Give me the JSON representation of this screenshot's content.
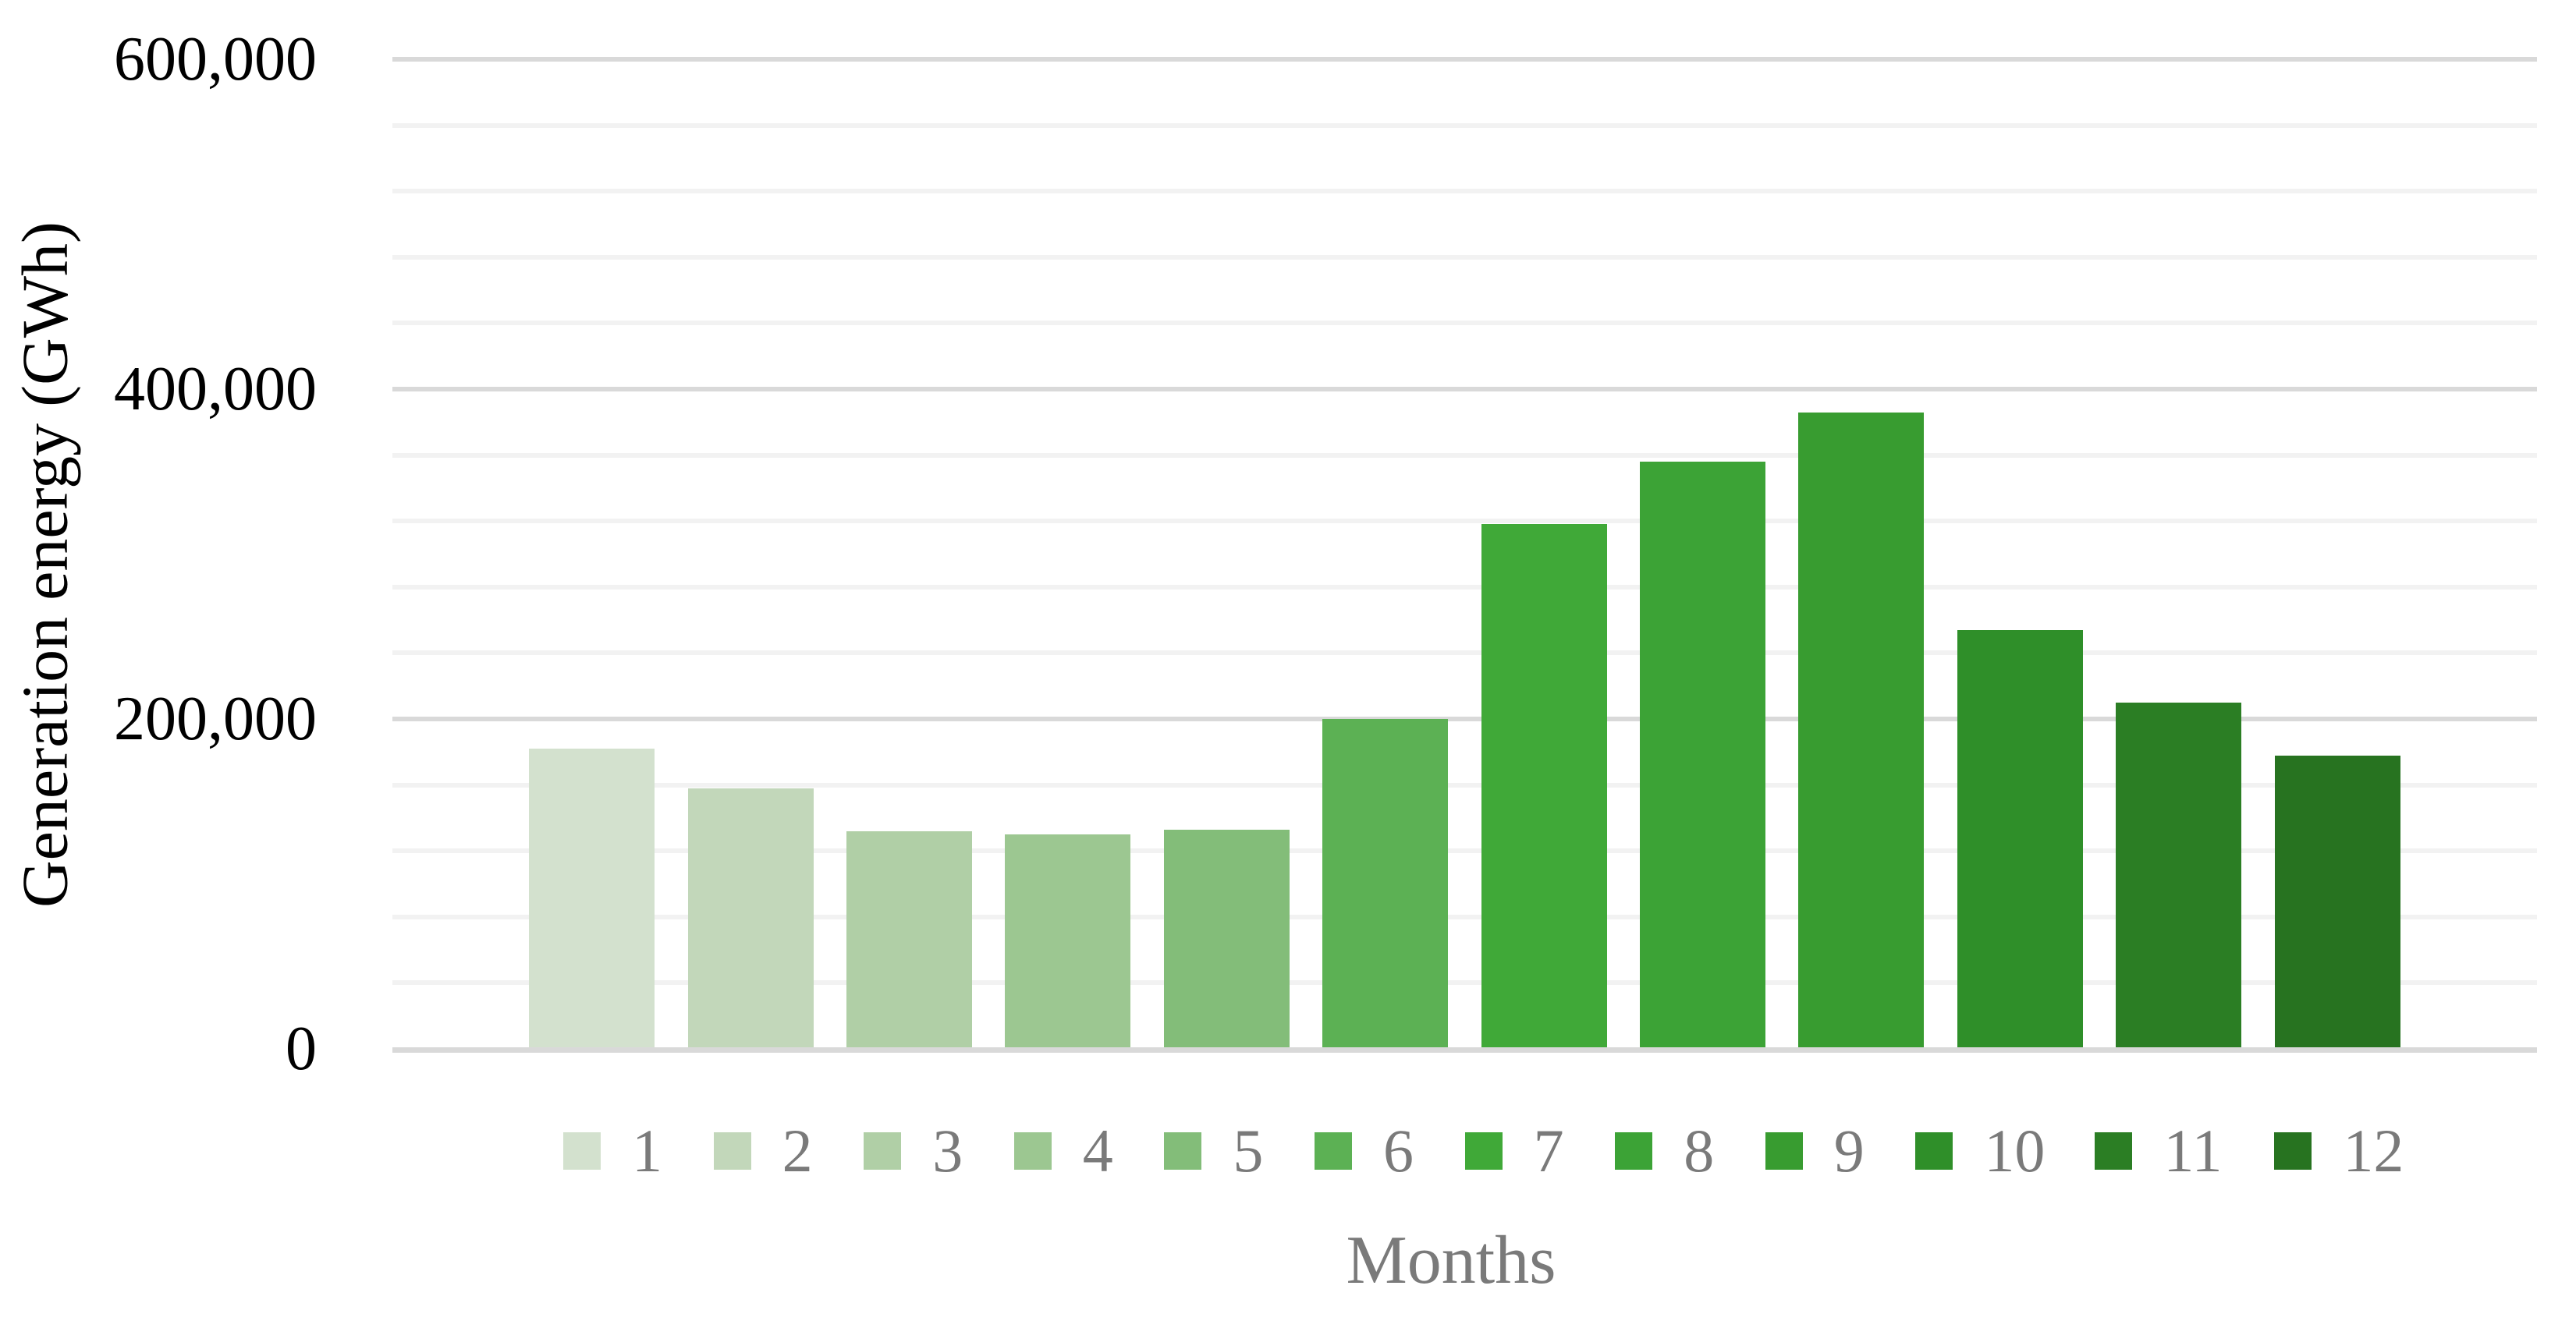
{
  "chart_data": {
    "type": "bar",
    "title": "",
    "xlabel": "Months",
    "ylabel": "Generation energy (GWh)",
    "categories": [
      "1",
      "2",
      "3",
      "4",
      "5",
      "6",
      "7",
      "8",
      "9",
      "10",
      "11",
      "12"
    ],
    "values": [
      182000,
      158000,
      132000,
      130000,
      133000,
      200000,
      318000,
      356000,
      386000,
      254000,
      210000,
      178000
    ],
    "bar_colors": [
      "#d3e1ce",
      "#c2d7ba",
      "#b0cfa6",
      "#9cc791",
      "#83bd79",
      "#5cb154",
      "#40a938",
      "#3ca336",
      "#389c30",
      "#2f8f29",
      "#2b7e24",
      "#277320"
    ],
    "ylim": [
      0,
      600000
    ],
    "yticks": [
      {
        "value": 0,
        "label": "0"
      },
      {
        "value": 200000,
        "label": "200,000"
      },
      {
        "value": 400000,
        "label": "400,000"
      },
      {
        "value": 600000,
        "label": "600,000"
      }
    ],
    "minor_grid_step": 40000,
    "major_grid_step": 200000,
    "grid": true,
    "legend_position": "bottom",
    "legend_entries": [
      "1",
      "2",
      "3",
      "4",
      "5",
      "6",
      "7",
      "8",
      "9",
      "10",
      "11",
      "12"
    ]
  },
  "colors": {
    "background": "#ffffff",
    "major_grid": "#d9d9d9",
    "minor_grid": "#f2f2f2",
    "axis_line": "#d9d9d9",
    "tick_text": "#000000",
    "muted_text": "#7a7a7a"
  }
}
